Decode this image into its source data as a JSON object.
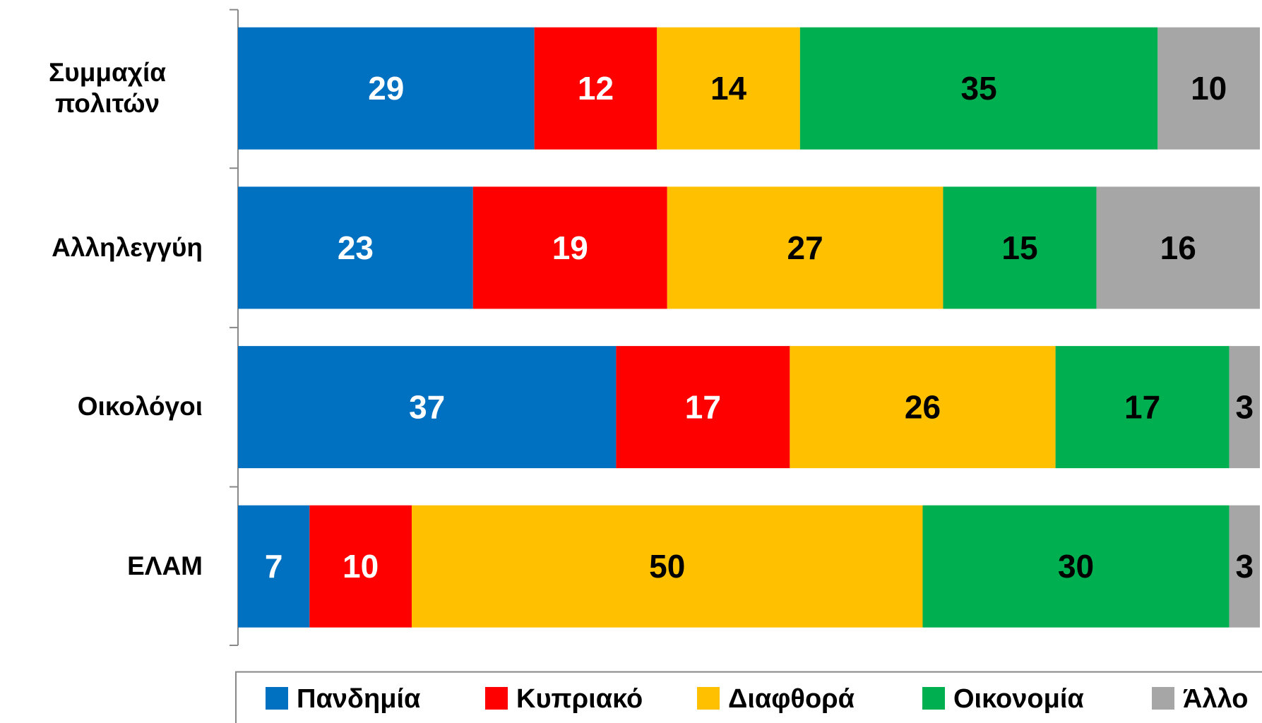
{
  "chart_data": {
    "type": "stacked-bar-horizontal",
    "categories": [
      "Συμμαχία πολιτών",
      "Αλληλεγγύη",
      "Οικολόγοι",
      "ΕΛΑΜ"
    ],
    "xlim": [
      0,
      100
    ],
    "series": [
      {
        "name": "Πανδημία",
        "color": "#0070c0",
        "label_color": "#ffffff",
        "values": [
          29,
          23,
          37,
          7
        ]
      },
      {
        "name": "Κυπριακό",
        "color": "#ff0000",
        "label_color": "#ffffff",
        "values": [
          12,
          19,
          17,
          10
        ]
      },
      {
        "name": "Διαφθορά",
        "color": "#ffc000",
        "label_color": "#000000",
        "values": [
          14,
          27,
          26,
          50
        ]
      },
      {
        "name": "Οικονομία",
        "color": "#00b050",
        "label_color": "#000000",
        "values": [
          35,
          15,
          17,
          30
        ]
      },
      {
        "name": "Άλλο",
        "color": "#a6a6a6",
        "label_color": "#000000",
        "values": [
          10,
          16,
          3,
          3
        ]
      }
    ],
    "legend": "bottom"
  }
}
